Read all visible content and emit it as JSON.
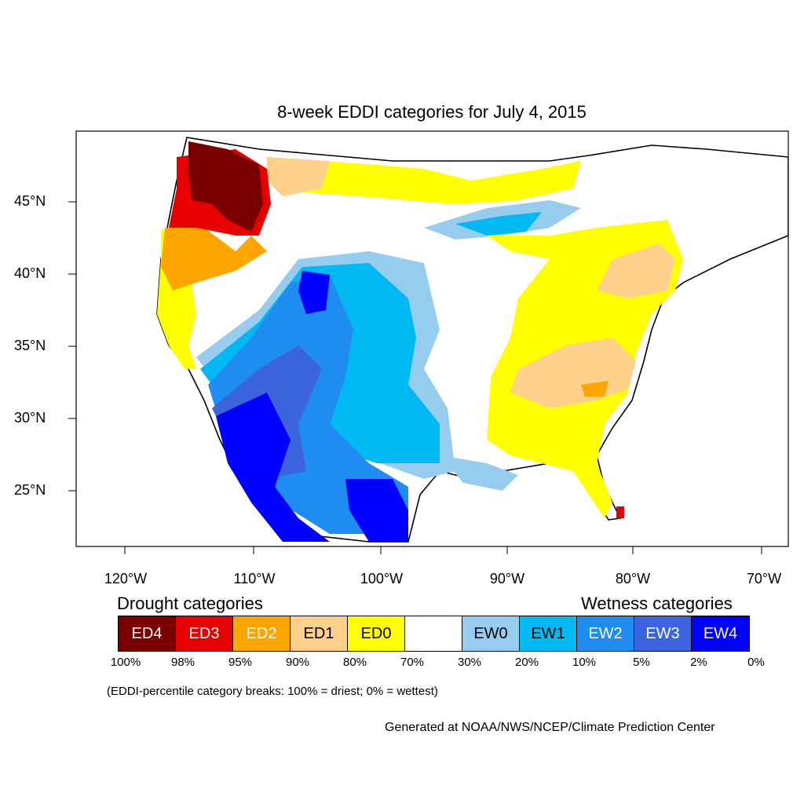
{
  "title": "8-week EDDI categories for July 4, 2015",
  "lat_labels": [
    "45°N",
    "40°N",
    "35°N",
    "30°N",
    "25°N"
  ],
  "lon_labels": [
    "120°W",
    "110°W",
    "100°W",
    "90°W",
    "80°W",
    "70°W"
  ],
  "legend": {
    "drought_title": "Drought categories",
    "wetness_title": "Wetness categories",
    "categories": [
      {
        "label": "ED4",
        "color": "#7a0000",
        "text_color": "#ffffff"
      },
      {
        "label": "ED3",
        "color": "#e60000",
        "text_color": "#ffffff"
      },
      {
        "label": "ED2",
        "color": "#ffa500",
        "text_color": "#ffffff"
      },
      {
        "label": "ED1",
        "color": "#fdd08b",
        "text_color": "#000000"
      },
      {
        "label": "ED0",
        "color": "#ffff00",
        "text_color": "#000000"
      },
      {
        "label": "",
        "color": "#ffffff",
        "text_color": "#000000"
      },
      {
        "label": "EW0",
        "color": "#96cdee",
        "text_color": "#000000"
      },
      {
        "label": "EW1",
        "color": "#00b9f2",
        "text_color": "#000000"
      },
      {
        "label": "EW2",
        "color": "#1e8cf0",
        "text_color": "#ffffff"
      },
      {
        "label": "EW3",
        "color": "#3c64dc",
        "text_color": "#ffffff"
      },
      {
        "label": "EW4",
        "color": "#0000ff",
        "text_color": "#ffffff"
      }
    ],
    "percentiles": [
      "100%",
      "98%",
      "95%",
      "90%",
      "80%",
      "70%",
      "30%",
      "20%",
      "10%",
      "5%",
      "2%",
      "0%"
    ]
  },
  "note": "(EDDI-percentile category breaks: 100% = driest; 0% = wettest)",
  "credit": "Generated at NOAA/NWS/NCEP/Climate Prediction Center"
}
